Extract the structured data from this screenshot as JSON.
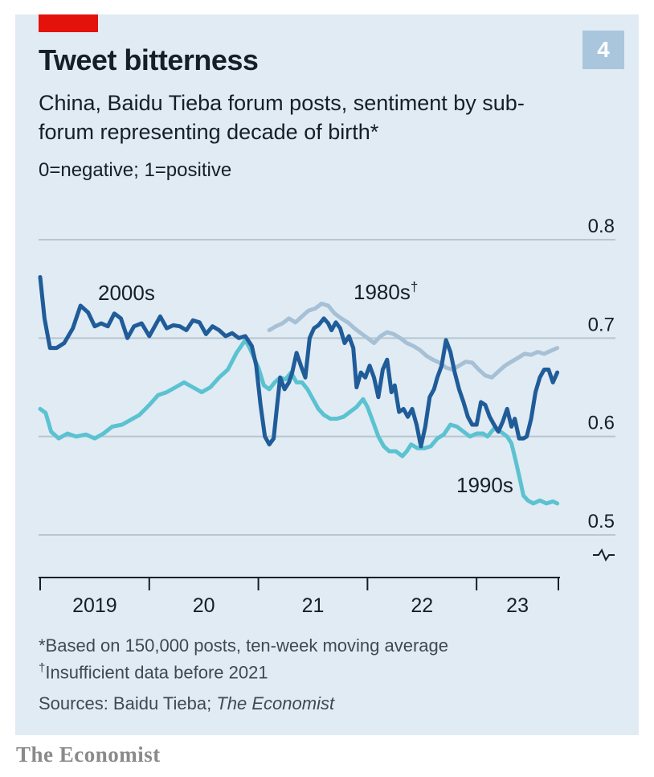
{
  "header": {
    "chart_number": "4",
    "title": "Tweet bitterness",
    "subtitle": "China, Baidu Tieba forum posts, sentiment by sub-forum representing decade of birth*",
    "scale_note": "0=negative; 1=positive"
  },
  "footer": {
    "footnote1": "*Based on 150,000 posts, ten-week moving average",
    "footnote2_mark": "†",
    "footnote2_text": "Insufficient data before 2021",
    "source_prefix": "Sources: Baidu Tieba; ",
    "source_publication": "The Economist",
    "brand": "The Economist"
  },
  "colors": {
    "background": "#e1ebf3",
    "accent_red": "#e3120b",
    "series_2000s": "#1f5c99",
    "series_1990s": "#5bc2d1",
    "series_1980s": "#a6c0d6",
    "gridline": "#b7c6d1",
    "axis": "#141f27"
  },
  "chart_data": {
    "type": "line",
    "x_axis": {
      "ticks": [
        "2019",
        "20",
        "21",
        "22",
        "23"
      ],
      "range": [
        "2019-01",
        "2023-06"
      ]
    },
    "y_axis": {
      "ticks": [
        "0.8",
        "0.7",
        "0.6",
        "0.5"
      ],
      "range": [
        0.5,
        0.8
      ],
      "broken_axis": true,
      "position": "right"
    },
    "grid": true,
    "series": [
      {
        "name": "2000s",
        "label": "2000s",
        "color": "#1f5c99",
        "points": [
          [
            2019.0,
            0.762
          ],
          [
            2019.04,
            0.72
          ],
          [
            2019.09,
            0.69
          ],
          [
            2019.15,
            0.69
          ],
          [
            2019.22,
            0.695
          ],
          [
            2019.3,
            0.71
          ],
          [
            2019.37,
            0.733
          ],
          [
            2019.44,
            0.726
          ],
          [
            2019.5,
            0.712
          ],
          [
            2019.56,
            0.715
          ],
          [
            2019.62,
            0.712
          ],
          [
            2019.68,
            0.725
          ],
          [
            2019.74,
            0.72
          ],
          [
            2019.8,
            0.7
          ],
          [
            2019.86,
            0.712
          ],
          [
            2019.93,
            0.715
          ],
          [
            2020.0,
            0.702
          ],
          [
            2020.05,
            0.712
          ],
          [
            2020.1,
            0.722
          ],
          [
            2020.16,
            0.71
          ],
          [
            2020.22,
            0.713
          ],
          [
            2020.28,
            0.712
          ],
          [
            2020.34,
            0.708
          ],
          [
            2020.4,
            0.718
          ],
          [
            2020.46,
            0.716
          ],
          [
            2020.52,
            0.704
          ],
          [
            2020.58,
            0.712
          ],
          [
            2020.64,
            0.708
          ],
          [
            2020.7,
            0.702
          ],
          [
            2020.76,
            0.705
          ],
          [
            2020.82,
            0.7
          ],
          [
            2020.88,
            0.702
          ],
          [
            2020.94,
            0.692
          ],
          [
            2020.98,
            0.672
          ],
          [
            2021.02,
            0.632
          ],
          [
            2021.06,
            0.6
          ],
          [
            2021.1,
            0.592
          ],
          [
            2021.14,
            0.598
          ],
          [
            2021.17,
            0.63
          ],
          [
            2021.2,
            0.66
          ],
          [
            2021.24,
            0.648
          ],
          [
            2021.28,
            0.655
          ],
          [
            2021.31,
            0.665
          ],
          [
            2021.35,
            0.685
          ],
          [
            2021.39,
            0.672
          ],
          [
            2021.43,
            0.66
          ],
          [
            2021.47,
            0.7
          ],
          [
            2021.51,
            0.71
          ],
          [
            2021.55,
            0.713
          ],
          [
            2021.6,
            0.72
          ],
          [
            2021.64,
            0.715
          ],
          [
            2021.67,
            0.708
          ],
          [
            2021.71,
            0.716
          ],
          [
            2021.75,
            0.71
          ],
          [
            2021.79,
            0.695
          ],
          [
            2021.83,
            0.702
          ],
          [
            2021.87,
            0.69
          ],
          [
            2021.9,
            0.65
          ],
          [
            2021.94,
            0.665
          ],
          [
            2021.98,
            0.66
          ],
          [
            2022.02,
            0.672
          ],
          [
            2022.06,
            0.66
          ],
          [
            2022.1,
            0.64
          ],
          [
            2022.14,
            0.668
          ],
          [
            2022.18,
            0.678
          ],
          [
            2022.22,
            0.645
          ],
          [
            2022.25,
            0.652
          ],
          [
            2022.29,
            0.625
          ],
          [
            2022.33,
            0.628
          ],
          [
            2022.37,
            0.62
          ],
          [
            2022.41,
            0.628
          ],
          [
            2022.45,
            0.612
          ],
          [
            2022.49,
            0.59
          ],
          [
            2022.53,
            0.61
          ],
          [
            2022.57,
            0.64
          ],
          [
            2022.61,
            0.648
          ],
          [
            2022.64,
            0.66
          ],
          [
            2022.68,
            0.672
          ],
          [
            2022.72,
            0.698
          ],
          [
            2022.76,
            0.686
          ],
          [
            2022.8,
            0.665
          ],
          [
            2022.84,
            0.648
          ],
          [
            2022.88,
            0.635
          ],
          [
            2022.92,
            0.62
          ],
          [
            2022.96,
            0.612
          ],
          [
            2023.0,
            0.612
          ],
          [
            2023.04,
            0.635
          ],
          [
            2023.08,
            0.632
          ],
          [
            2023.12,
            0.62
          ],
          [
            2023.16,
            0.612
          ],
          [
            2023.2,
            0.605
          ],
          [
            2023.24,
            0.615
          ],
          [
            2023.28,
            0.628
          ],
          [
            2023.32,
            0.61
          ],
          [
            2023.35,
            0.618
          ],
          [
            2023.39,
            0.598
          ],
          [
            2023.43,
            0.598
          ],
          [
            2023.46,
            0.6
          ],
          [
            2023.5,
            0.618
          ],
          [
            2023.54,
            0.645
          ],
          [
            2023.58,
            0.66
          ],
          [
            2023.62,
            0.668
          ],
          [
            2023.66,
            0.668
          ],
          [
            2023.7,
            0.655
          ],
          [
            2023.74,
            0.665
          ]
        ]
      },
      {
        "name": "1990s",
        "label": "1990s",
        "color": "#5bc2d1",
        "points": [
          [
            2019.0,
            0.628
          ],
          [
            2019.05,
            0.624
          ],
          [
            2019.1,
            0.605
          ],
          [
            2019.17,
            0.598
          ],
          [
            2019.25,
            0.603
          ],
          [
            2019.33,
            0.6
          ],
          [
            2019.42,
            0.602
          ],
          [
            2019.5,
            0.598
          ],
          [
            2019.58,
            0.603
          ],
          [
            2019.66,
            0.61
          ],
          [
            2019.75,
            0.612
          ],
          [
            2019.83,
            0.617
          ],
          [
            2019.91,
            0.622
          ],
          [
            2020.0,
            0.632
          ],
          [
            2020.08,
            0.642
          ],
          [
            2020.16,
            0.645
          ],
          [
            2020.24,
            0.65
          ],
          [
            2020.32,
            0.655
          ],
          [
            2020.4,
            0.65
          ],
          [
            2020.48,
            0.645
          ],
          [
            2020.56,
            0.65
          ],
          [
            2020.64,
            0.66
          ],
          [
            2020.72,
            0.668
          ],
          [
            2020.8,
            0.685
          ],
          [
            2020.88,
            0.698
          ],
          [
            2020.92,
            0.69
          ],
          [
            2020.96,
            0.68
          ],
          [
            2021.0,
            0.67
          ],
          [
            2021.05,
            0.652
          ],
          [
            2021.1,
            0.648
          ],
          [
            2021.15,
            0.655
          ],
          [
            2021.2,
            0.66
          ],
          [
            2021.25,
            0.658
          ],
          [
            2021.3,
            0.665
          ],
          [
            2021.35,
            0.655
          ],
          [
            2021.4,
            0.655
          ],
          [
            2021.45,
            0.648
          ],
          [
            2021.5,
            0.638
          ],
          [
            2021.55,
            0.628
          ],
          [
            2021.6,
            0.622
          ],
          [
            2021.66,
            0.618
          ],
          [
            2021.72,
            0.618
          ],
          [
            2021.78,
            0.62
          ],
          [
            2021.84,
            0.625
          ],
          [
            2021.9,
            0.63
          ],
          [
            2021.96,
            0.638
          ],
          [
            2022.0,
            0.63
          ],
          [
            2022.05,
            0.615
          ],
          [
            2022.1,
            0.6
          ],
          [
            2022.15,
            0.59
          ],
          [
            2022.2,
            0.585
          ],
          [
            2022.26,
            0.585
          ],
          [
            2022.32,
            0.58
          ],
          [
            2022.36,
            0.585
          ],
          [
            2022.4,
            0.592
          ],
          [
            2022.46,
            0.588
          ],
          [
            2022.52,
            0.588
          ],
          [
            2022.58,
            0.59
          ],
          [
            2022.64,
            0.598
          ],
          [
            2022.7,
            0.602
          ],
          [
            2022.76,
            0.612
          ],
          [
            2022.82,
            0.61
          ],
          [
            2022.88,
            0.605
          ],
          [
            2022.94,
            0.6
          ],
          [
            2023.0,
            0.603
          ],
          [
            2023.06,
            0.603
          ],
          [
            2023.1,
            0.6
          ],
          [
            2023.16,
            0.608
          ],
          [
            2023.22,
            0.605
          ],
          [
            2023.28,
            0.6
          ],
          [
            2023.32,
            0.593
          ],
          [
            2023.36,
            0.575
          ],
          [
            2023.4,
            0.555
          ],
          [
            2023.43,
            0.54
          ],
          [
            2023.47,
            0.535
          ],
          [
            2023.52,
            0.532
          ],
          [
            2023.58,
            0.535
          ],
          [
            2023.64,
            0.532
          ],
          [
            2023.7,
            0.534
          ],
          [
            2023.74,
            0.532
          ]
        ]
      },
      {
        "name": "1980s",
        "label": "1980s",
        "label_mark": "†",
        "color": "#a6c0d6",
        "points": [
          [
            2021.1,
            0.708
          ],
          [
            2021.16,
            0.712
          ],
          [
            2021.22,
            0.715
          ],
          [
            2021.28,
            0.72
          ],
          [
            2021.34,
            0.716
          ],
          [
            2021.4,
            0.722
          ],
          [
            2021.46,
            0.728
          ],
          [
            2021.52,
            0.73
          ],
          [
            2021.58,
            0.735
          ],
          [
            2021.64,
            0.733
          ],
          [
            2021.7,
            0.725
          ],
          [
            2021.76,
            0.72
          ],
          [
            2021.82,
            0.716
          ],
          [
            2021.88,
            0.71
          ],
          [
            2021.94,
            0.705
          ],
          [
            2022.0,
            0.7
          ],
          [
            2022.06,
            0.695
          ],
          [
            2022.12,
            0.702
          ],
          [
            2022.18,
            0.706
          ],
          [
            2022.24,
            0.704
          ],
          [
            2022.3,
            0.7
          ],
          [
            2022.36,
            0.695
          ],
          [
            2022.42,
            0.692
          ],
          [
            2022.48,
            0.688
          ],
          [
            2022.54,
            0.682
          ],
          [
            2022.6,
            0.678
          ],
          [
            2022.66,
            0.675
          ],
          [
            2022.72,
            0.67
          ],
          [
            2022.78,
            0.668
          ],
          [
            2022.84,
            0.672
          ],
          [
            2022.9,
            0.676
          ],
          [
            2022.96,
            0.675
          ],
          [
            2023.02,
            0.668
          ],
          [
            2023.08,
            0.662
          ],
          [
            2023.14,
            0.66
          ],
          [
            2023.2,
            0.666
          ],
          [
            2023.26,
            0.672
          ],
          [
            2023.32,
            0.676
          ],
          [
            2023.38,
            0.68
          ],
          [
            2023.44,
            0.684
          ],
          [
            2023.5,
            0.683
          ],
          [
            2023.56,
            0.686
          ],
          [
            2023.62,
            0.684
          ],
          [
            2023.68,
            0.687
          ],
          [
            2023.74,
            0.69
          ]
        ]
      }
    ]
  }
}
